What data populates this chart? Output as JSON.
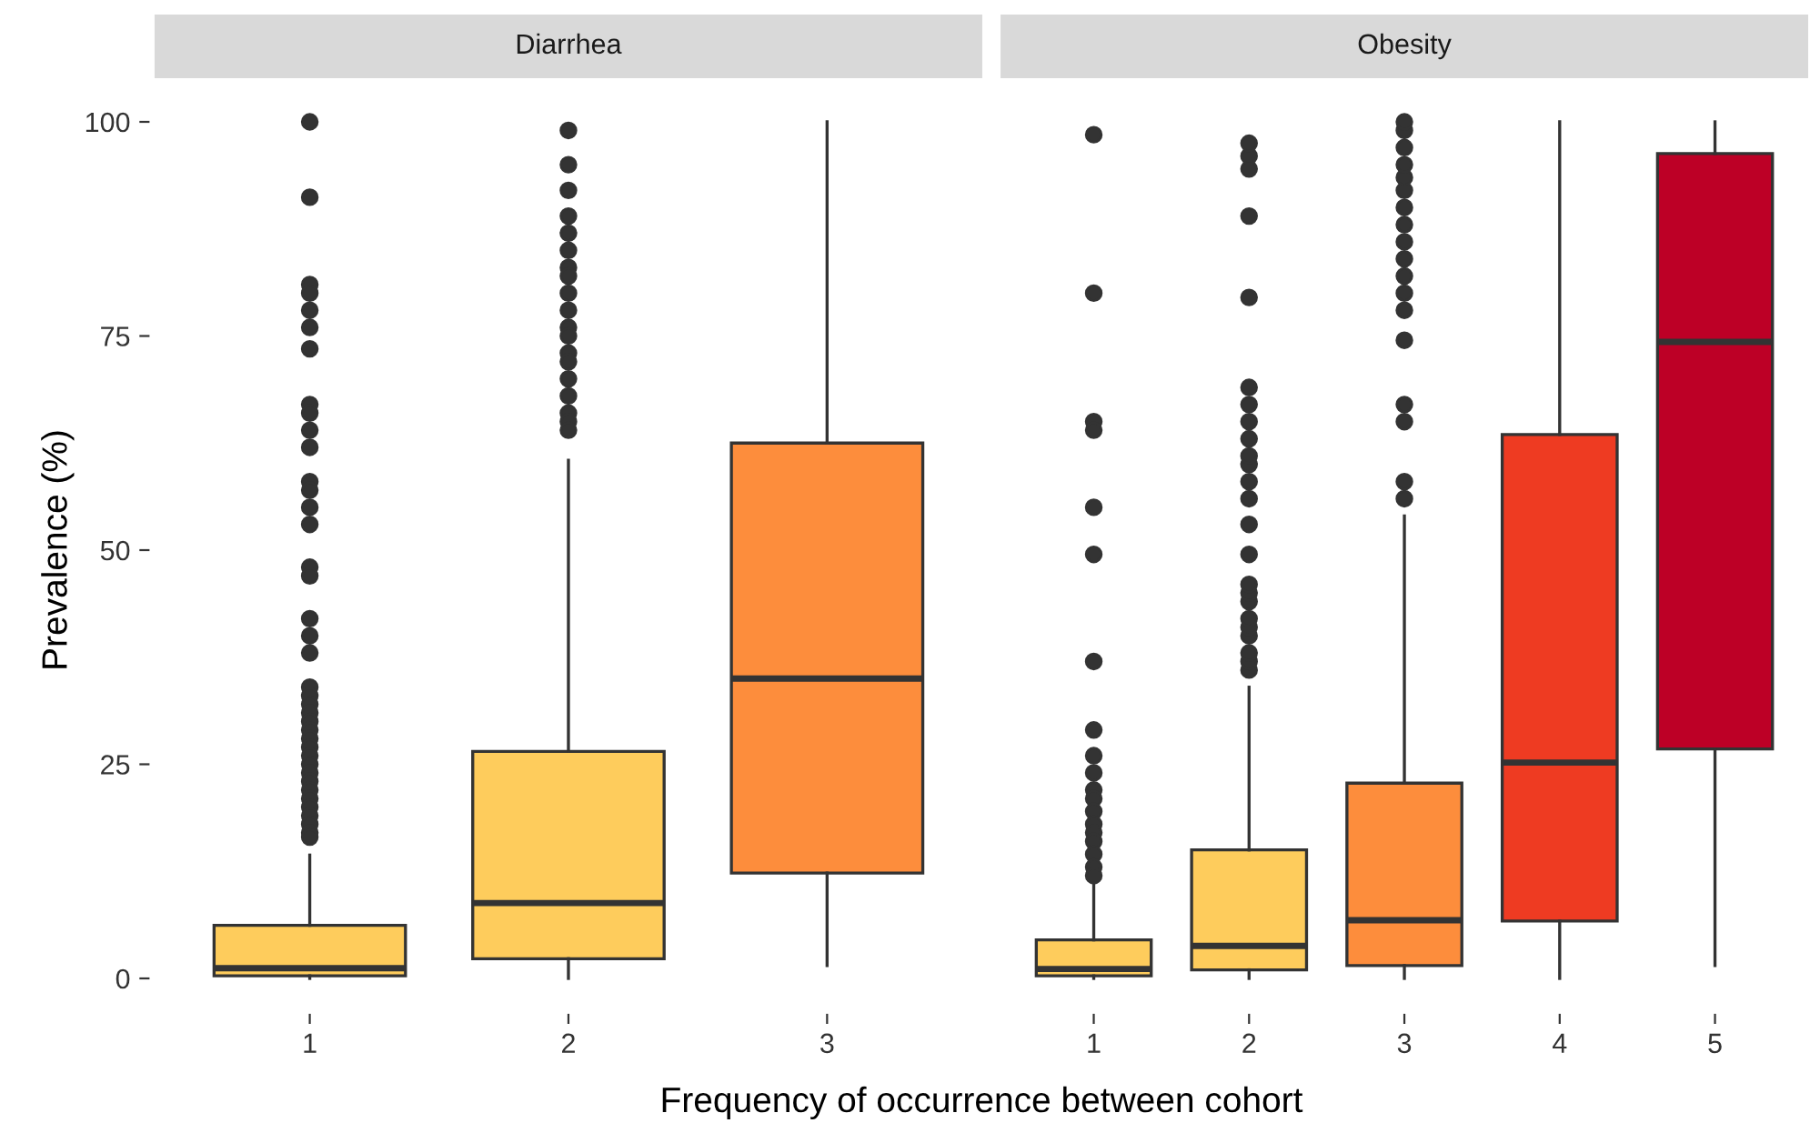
{
  "chart_data": [
    {
      "type": "box",
      "title": "Diarrhea",
      "xlabel": "Frequency of occurrence between cohort",
      "ylabel": "Prevalence (%)",
      "categories": [
        "1",
        "2",
        "3"
      ],
      "colors": [
        "#fecc5c",
        "#fecc5c",
        "#fd8d3c"
      ],
      "ylim": [
        0,
        100
      ],
      "yticks": [
        0,
        25,
        50,
        75,
        100
      ],
      "grid": false,
      "boxes": [
        {
          "low": 0,
          "q1": 0.3,
          "median": 1.2,
          "q3": 6.2,
          "high": 14.4,
          "outliers": [
            100,
            91.2,
            81,
            80,
            78,
            76,
            73.5,
            67,
            66,
            64,
            62,
            58,
            57,
            55,
            53,
            48,
            47,
            42,
            40,
            38,
            34,
            33,
            32,
            31,
            30,
            29,
            28,
            27,
            26,
            25,
            24,
            23,
            22,
            21,
            20,
            19,
            18,
            17,
            16.5
          ]
        },
        {
          "low": 0,
          "q1": 2.3,
          "median": 8.8,
          "q3": 26.5,
          "high": 60.5,
          "outliers": [
            99,
            95,
            92,
            89,
            87,
            85,
            83,
            82,
            80,
            78,
            76,
            75,
            73,
            72,
            70,
            68,
            66,
            65,
            64
          ]
        },
        {
          "low": 1.5,
          "q1": 12.3,
          "median": 35,
          "q3": 62.5,
          "high": 100
        }
      ]
    },
    {
      "type": "box",
      "title": "Obesity",
      "categories": [
        "1",
        "2",
        "3",
        "4",
        "5"
      ],
      "colors": [
        "#fecc5c",
        "#fecc5c",
        "#fd8d3c",
        "#ee3b22",
        "#bd0026"
      ],
      "ylim": [
        0,
        100
      ],
      "yticks": [
        0,
        25,
        50,
        75,
        100
      ],
      "grid": false,
      "tick_labels": "x",
      "boxes": [
        {
          "low": 0,
          "q1": 0.3,
          "median": 1.1,
          "q3": 4.5,
          "high": 11,
          "outliers": [
            98.5,
            80,
            65,
            64,
            55,
            49.5,
            37,
            29,
            26,
            24,
            22,
            21,
            19.5,
            18,
            17,
            16,
            14.5,
            13,
            12
          ]
        },
        {
          "low": 0,
          "q1": 1,
          "median": 3.8,
          "q3": 15,
          "high": 34,
          "outliers": [
            36,
            37,
            38,
            40,
            41,
            42,
            44,
            45,
            46,
            49.5,
            53,
            56,
            58,
            60,
            61,
            63,
            65,
            67,
            69,
            79.5,
            89,
            94.5,
            96,
            97.5
          ]
        },
        {
          "low": 0,
          "q1": 1.5,
          "median": 6.8,
          "q3": 22.8,
          "high": 54,
          "outliers": [
            56,
            58,
            65,
            67,
            74.5,
            78,
            80,
            82,
            84,
            86,
            88,
            90,
            92,
            93.5,
            95,
            97,
            99,
            100
          ]
        },
        {
          "low": 0,
          "q1": 6.7,
          "median": 25.2,
          "q3": 63.5,
          "high": 100
        },
        {
          "low": 1.5,
          "q1": 26.8,
          "median": 74.3,
          "q3": 96.3,
          "high": 100
        }
      ]
    }
  ]
}
